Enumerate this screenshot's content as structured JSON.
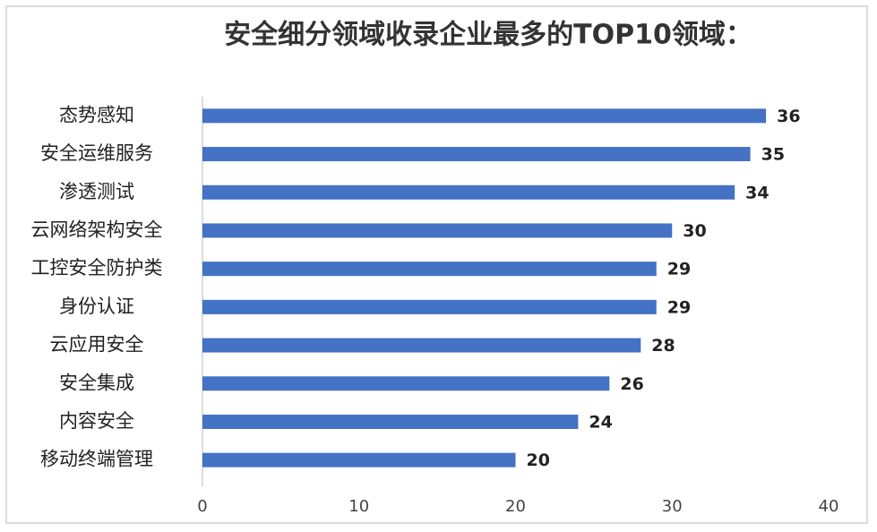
{
  "chart_data": {
    "type": "bar",
    "orientation": "horizontal",
    "title": "安全细分领域收录企业最多的TOP10领域：",
    "categories": [
      "态势感知",
      "安全运维服务",
      "渗透测试",
      "云网络架构安全",
      "工控安全防护类",
      "身份认证",
      "云应用安全",
      "安全集成",
      "内容安全",
      "移动终端管理"
    ],
    "values": [
      36,
      35,
      34,
      30,
      29,
      29,
      28,
      26,
      24,
      20
    ],
    "color": "#4472c4",
    "xlim": [
      0,
      40
    ],
    "xticks": [
      0,
      10,
      20,
      30,
      40
    ],
    "grid": false
  }
}
